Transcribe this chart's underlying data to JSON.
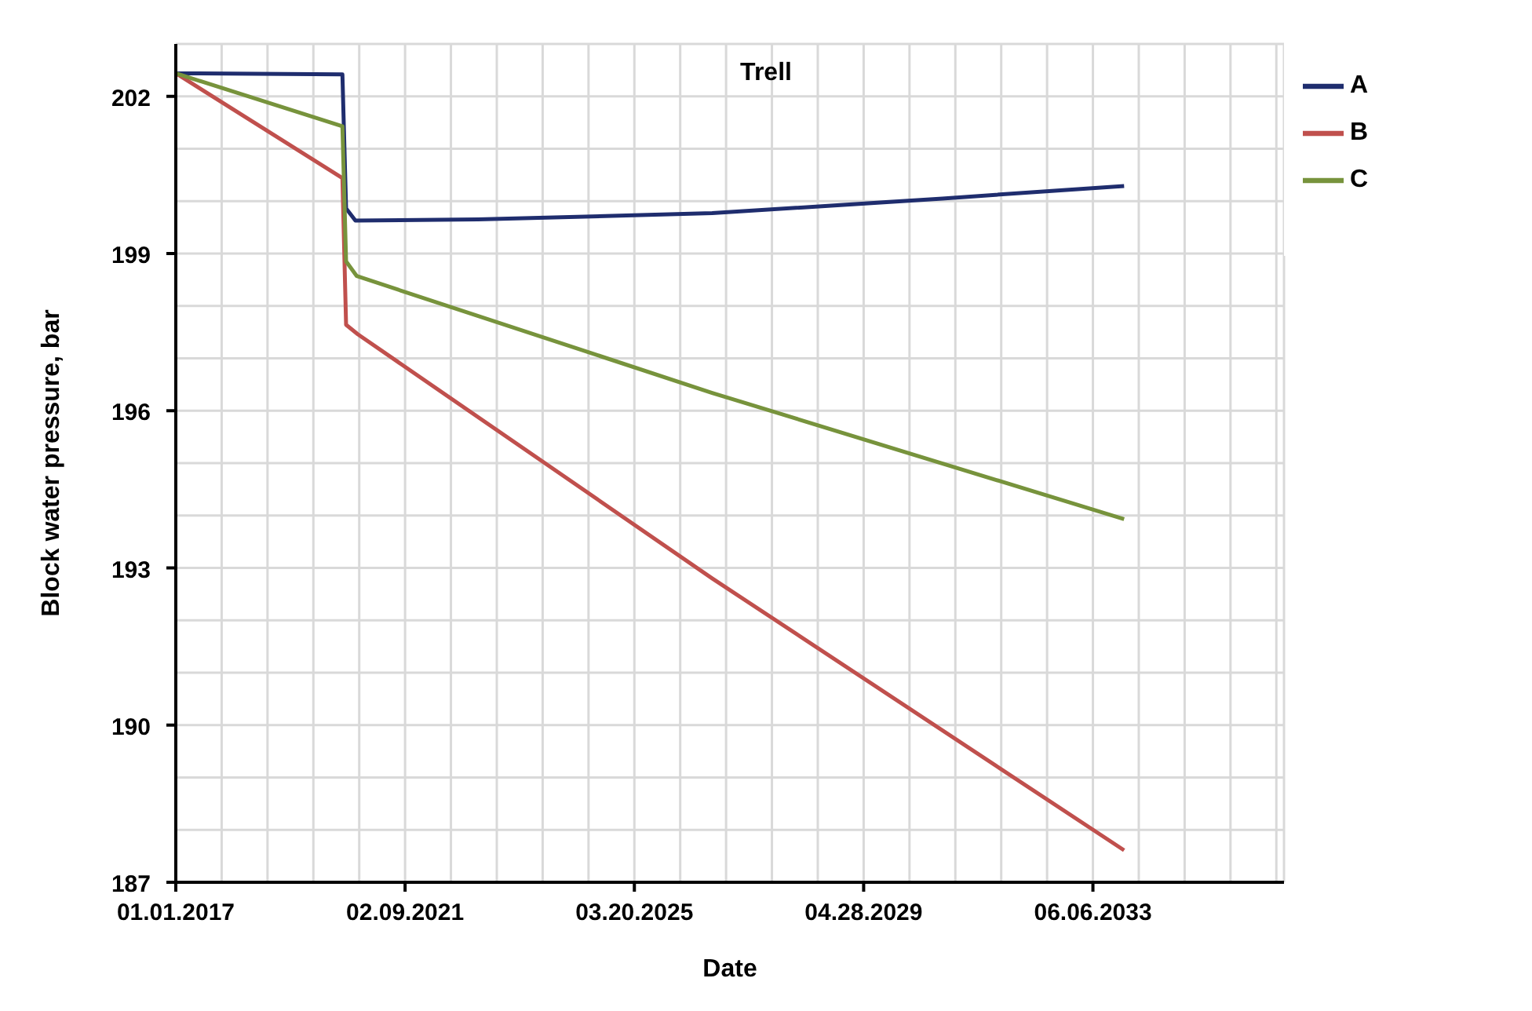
{
  "chart_data": {
    "type": "line",
    "title": "Trell",
    "xlabel": "Date",
    "ylabel": "Block water pressure, bar",
    "xlim": [
      "2017-01-01",
      "2036-11-07"
    ],
    "xticks": [
      {
        "value": "2017-01-01",
        "label": "01.01.2017"
      },
      {
        "value": "2017-10-28",
        "label": null
      },
      {
        "value": "2018-08-24",
        "label": null
      },
      {
        "value": "2019-06-20",
        "label": null
      },
      {
        "value": "2020-04-15",
        "label": null
      },
      {
        "value": "2021-02-09",
        "label": "02.09.2021"
      },
      {
        "value": "2021-12-06",
        "label": null
      },
      {
        "value": "2022-10-02",
        "label": null
      },
      {
        "value": "2023-07-29",
        "label": null
      },
      {
        "value": "2024-05-24",
        "label": null
      },
      {
        "value": "2025-03-20",
        "label": "03.20.2025"
      },
      {
        "value": "2026-01-14",
        "label": null
      },
      {
        "value": "2026-11-10",
        "label": null
      },
      {
        "value": "2027-09-06",
        "label": null
      },
      {
        "value": "2028-07-02",
        "label": null
      },
      {
        "value": "2029-04-28",
        "label": "04.28.2029"
      },
      {
        "value": "2030-02-22",
        "label": null
      },
      {
        "value": "2030-12-19",
        "label": null
      },
      {
        "value": "2031-10-15",
        "label": null
      },
      {
        "value": "2032-08-10",
        "label": null
      },
      {
        "value": "2033-06-06",
        "label": "06.06.2033"
      },
      {
        "value": "2034-04-02",
        "label": null
      },
      {
        "value": "2035-01-27",
        "label": null
      },
      {
        "value": "2035-11-23",
        "label": null
      },
      {
        "value": "2036-09-18",
        "label": null
      }
    ],
    "ylim": [
      187,
      203
    ],
    "yticks": [
      187,
      {
        "value": 188,
        "label": null
      },
      {
        "value": 189,
        "label": null
      },
      190,
      {
        "value": 191,
        "label": null
      },
      {
        "value": 192,
        "label": null
      },
      193,
      {
        "value": 194,
        "label": null
      },
      {
        "value": 195,
        "label": null
      },
      196,
      {
        "value": 197,
        "label": null
      },
      {
        "value": 198,
        "label": null
      },
      199,
      {
        "value": 200,
        "label": null
      },
      {
        "value": 201,
        "label": null
      },
      202,
      {
        "value": 203,
        "label": null
      }
    ],
    "grid": true,
    "legend": "top right",
    "marker": "none",
    "line_style": "solid",
    "series": [
      {
        "name": "A",
        "color": "#1f2d6e",
        "x": [
          "2017-01-01",
          "2019-12-27",
          "2020-01-20",
          "2020-03-21",
          "2022-06-01",
          "2026-08-11",
          "2030-09-25",
          "2033-12-27"
        ],
        "values": [
          202.44,
          202.42,
          199.86,
          199.63,
          199.65,
          199.77,
          200.05,
          200.29
        ]
      },
      {
        "name": "B",
        "color": "#c0504d",
        "x": [
          "2017-01-01",
          "2019-12-27",
          "2020-01-20",
          "2020-04-05",
          "2026-08-11",
          "2033-12-27"
        ],
        "values": [
          202.44,
          200.44,
          197.64,
          197.46,
          192.8,
          187.61
        ]
      },
      {
        "name": "C",
        "color": "#77933c",
        "x": [
          "2017-01-01",
          "2019-12-27",
          "2020-01-20",
          "2020-03-30",
          "2026-08-11",
          "2033-12-27"
        ],
        "values": [
          202.44,
          201.43,
          198.85,
          198.57,
          196.34,
          193.93
        ]
      }
    ]
  }
}
